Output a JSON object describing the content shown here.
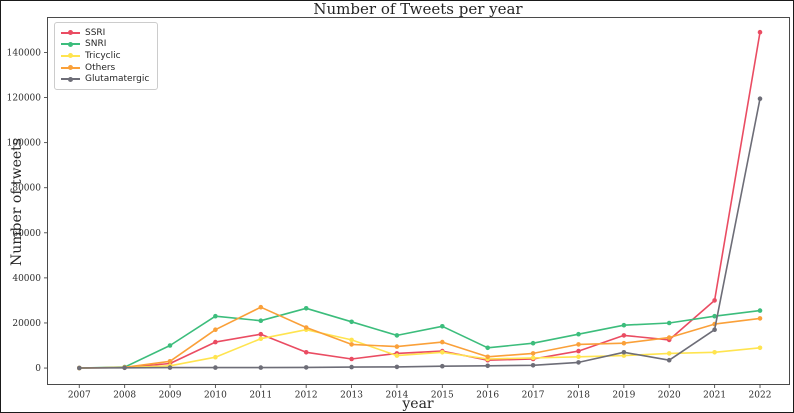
{
  "chart_data": {
    "type": "line",
    "title": "Number of Tweets per year",
    "xlabel": "year",
    "ylabel": "Number of tweets",
    "x": [
      2007,
      2008,
      2009,
      2010,
      2011,
      2012,
      2013,
      2014,
      2015,
      2016,
      2017,
      2018,
      2019,
      2020,
      2021,
      2022
    ],
    "y_ticks": [
      0,
      20000,
      40000,
      60000,
      80000,
      100000,
      120000,
      140000
    ],
    "xlim": [
      2006.3,
      2022.65
    ],
    "ylim": [
      -7300,
      155500
    ],
    "grid": false,
    "legend_position": "upper-left",
    "marker": "circle",
    "axis_color": "#4a4a4a",
    "series": [
      {
        "name": "SSRI",
        "color": "#ea4c62",
        "values": [
          0,
          200,
          2000,
          11500,
          15000,
          7000,
          4000,
          6500,
          7500,
          3500,
          4000,
          7500,
          14500,
          12500,
          30000,
          149000
        ]
      },
      {
        "name": "SNRI",
        "color": "#3cbd7c",
        "values": [
          0,
          400,
          10000,
          23000,
          21000,
          26500,
          20500,
          14500,
          18500,
          9000,
          11000,
          15000,
          19000,
          20000,
          23000,
          25500
        ]
      },
      {
        "name": "Tricyclic",
        "color": "#ffe44f",
        "values": [
          0,
          200,
          1000,
          4800,
          13000,
          17000,
          12500,
          5500,
          7000,
          4000,
          4500,
          5000,
          5500,
          6500,
          7000,
          9000
        ]
      },
      {
        "name": "Others",
        "color": "#faa039",
        "values": [
          0,
          300,
          3000,
          17000,
          27000,
          18000,
          10500,
          9500,
          11500,
          5000,
          6500,
          10500,
          11000,
          13500,
          19500,
          22000
        ]
      },
      {
        "name": "Glutamatergic",
        "color": "#6d6d77",
        "values": [
          0,
          100,
          200,
          200,
          200,
          300,
          400,
          500,
          800,
          1000,
          1200,
          2500,
          7000,
          3500,
          17000,
          119500
        ]
      }
    ]
  }
}
